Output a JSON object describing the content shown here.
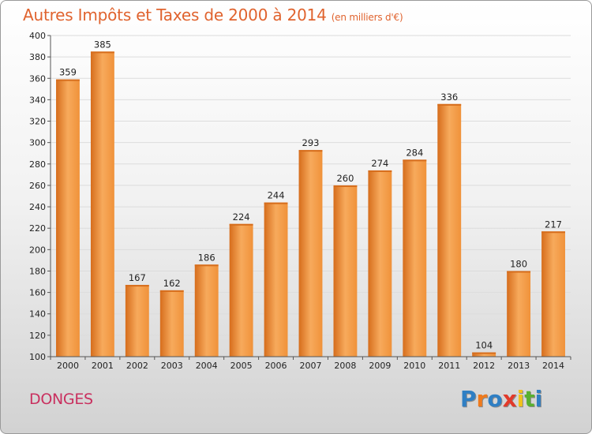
{
  "chart_data": {
    "type": "bar",
    "title": "Autres Impôts et Taxes de 2000 à 2014",
    "subtitle": "(en milliers d'€)",
    "categories": [
      "2000",
      "2001",
      "2002",
      "2003",
      "2004",
      "2005",
      "2006",
      "2007",
      "2008",
      "2009",
      "2010",
      "2011",
      "2012",
      "2013",
      "2014"
    ],
    "values": [
      359,
      385,
      167,
      162,
      186,
      224,
      244,
      293,
      260,
      274,
      284,
      336,
      104,
      180,
      217
    ],
    "ylim": [
      100,
      400
    ],
    "yticks": [
      100,
      120,
      140,
      160,
      180,
      200,
      220,
      240,
      260,
      280,
      300,
      320,
      340,
      360,
      380,
      400
    ],
    "grid": true,
    "bar_color": "#f0923a",
    "bar_color_light": "#f7aa5c",
    "bar_color_dark": "#d66d1c"
  },
  "place_name": "DONGES",
  "logo": {
    "letters": [
      "P",
      "r",
      "o",
      "x",
      "i",
      "t",
      "i"
    ],
    "colors": [
      "#2f7fc4",
      "#f07a1c",
      "#2f7fc4",
      "#e23a2a",
      "#f2c21a",
      "#59b030",
      "#2f7fc4"
    ]
  }
}
